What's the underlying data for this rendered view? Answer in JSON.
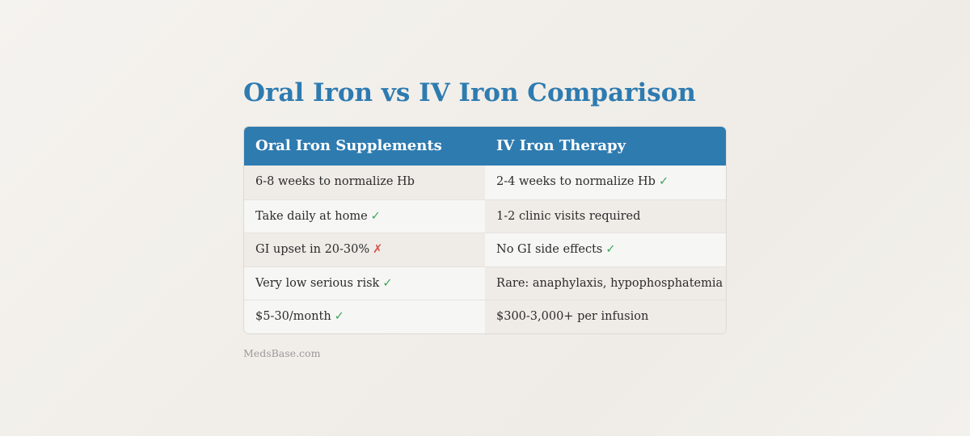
{
  "title": "Oral Iron vs IV Iron Comparison",
  "colors": {
    "accent": "#2e7bb0",
    "good": "#3aa655",
    "bad": "#d9534f"
  },
  "table": {
    "headers": [
      "Oral Iron Supplements",
      "IV Iron Therapy"
    ],
    "rows": [
      [
        {
          "text": "6-8 weeks to normalize Hb",
          "mark": "",
          "mark_type": ""
        },
        {
          "text": "2-4 weeks to normalize Hb",
          "mark": "✓",
          "mark_type": "good"
        }
      ],
      [
        {
          "text": "Take daily at home",
          "mark": "✓",
          "mark_type": "good"
        },
        {
          "text": "1-2 clinic visits required",
          "mark": "",
          "mark_type": ""
        }
      ],
      [
        {
          "text": "GI upset in 20-30%",
          "mark": "✗",
          "mark_type": "bad"
        },
        {
          "text": "No GI side effects",
          "mark": "✓",
          "mark_type": "good"
        }
      ],
      [
        {
          "text": "Very low serious risk",
          "mark": "✓",
          "mark_type": "good"
        },
        {
          "text": "Rare: anaphylaxis, hypophosphatemia",
          "mark": "",
          "mark_type": ""
        }
      ],
      [
        {
          "text": "$5-30/month",
          "mark": "✓",
          "mark_type": "good"
        },
        {
          "text": "$300-3,000+ per infusion",
          "mark": "",
          "mark_type": ""
        }
      ]
    ]
  },
  "footer": "MedsBase.com"
}
